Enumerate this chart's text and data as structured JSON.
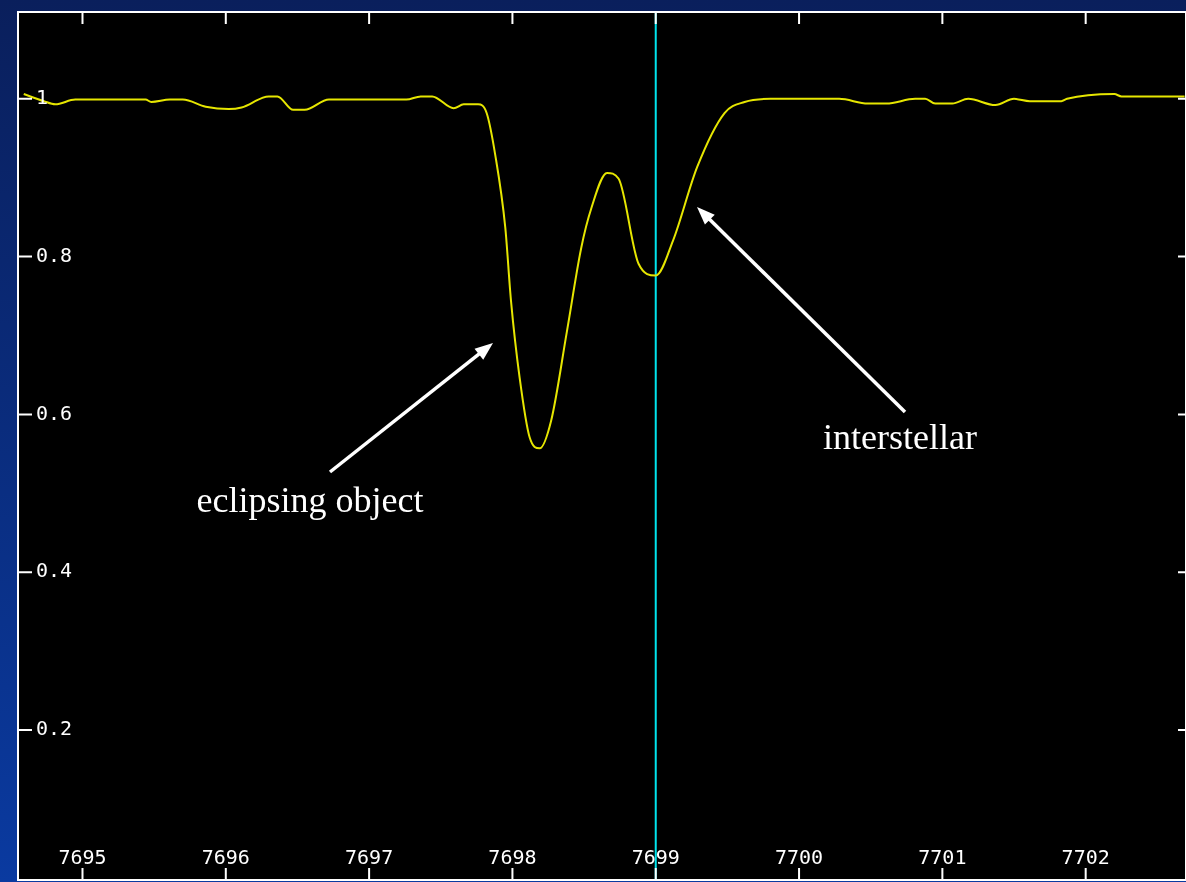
{
  "chart_data": {
    "type": "line",
    "x": [
      7694.59,
      7694.73,
      7694.81,
      7694.95,
      7695.44,
      7695.48,
      7695.61,
      7695.7,
      7695.86,
      7696.02,
      7696.11,
      7696.3,
      7696.36,
      7696.47,
      7696.55,
      7696.72,
      7697.17,
      7697.26,
      7697.36,
      7697.44,
      7697.59,
      7697.66,
      7697.76,
      7697.82,
      7697.88,
      7697.95,
      7697.99,
      7698.05,
      7698.12,
      7698.19,
      7698.27,
      7698.38,
      7698.48,
      7698.55,
      7698.66,
      7698.74,
      7698.88,
      7699.0,
      7699.12,
      7699.29,
      7699.48,
      7699.62,
      7699.8,
      7700.28,
      7700.48,
      7700.61,
      7700.81,
      7700.88,
      7700.95,
      7701.07,
      7701.18,
      7701.37,
      7701.5,
      7701.61,
      7701.83,
      7701.87,
      7702.2,
      7702.25,
      7702.69
    ],
    "series": [
      {
        "color": "#e6e600",
        "values": [
          1.006,
          0.997,
          0.993,
          0.999,
          0.999,
          0.996,
          0.999,
          0.999,
          0.99,
          0.987,
          0.989,
          1.003,
          1.003,
          0.986,
          0.986,
          0.999,
          0.999,
          0.999,
          1.003,
          1.003,
          0.988,
          0.993,
          0.993,
          0.982,
          0.929,
          0.837,
          0.744,
          0.647,
          0.571,
          0.557,
          0.592,
          0.705,
          0.811,
          0.861,
          0.906,
          0.899,
          0.791,
          0.776,
          0.82,
          0.914,
          0.982,
          0.996,
          1.0,
          1.0,
          0.994,
          0.994,
          1.0,
          1.0,
          0.994,
          0.994,
          1.0,
          0.992,
          1.0,
          0.997,
          0.997,
          1.0,
          1.006,
          1.003,
          1.003
        ]
      }
    ],
    "xlim": [
      7694.55,
      7702.7
    ],
    "ylim": [
      0.01,
      1.11
    ],
    "xticks": [
      7695,
      7696,
      7697,
      7698,
      7699,
      7700,
      7701,
      7702
    ],
    "yticks": [
      0.2,
      0.4,
      0.6,
      0.8,
      1
    ],
    "ref_lines": [
      {
        "axis": "x",
        "value": 7699,
        "color": "#00e5ee"
      }
    ],
    "annotations": [
      "eclipsing object",
      "interstellar"
    ],
    "grid": false,
    "legend": false,
    "marker": "none",
    "line_style": "solid"
  }
}
